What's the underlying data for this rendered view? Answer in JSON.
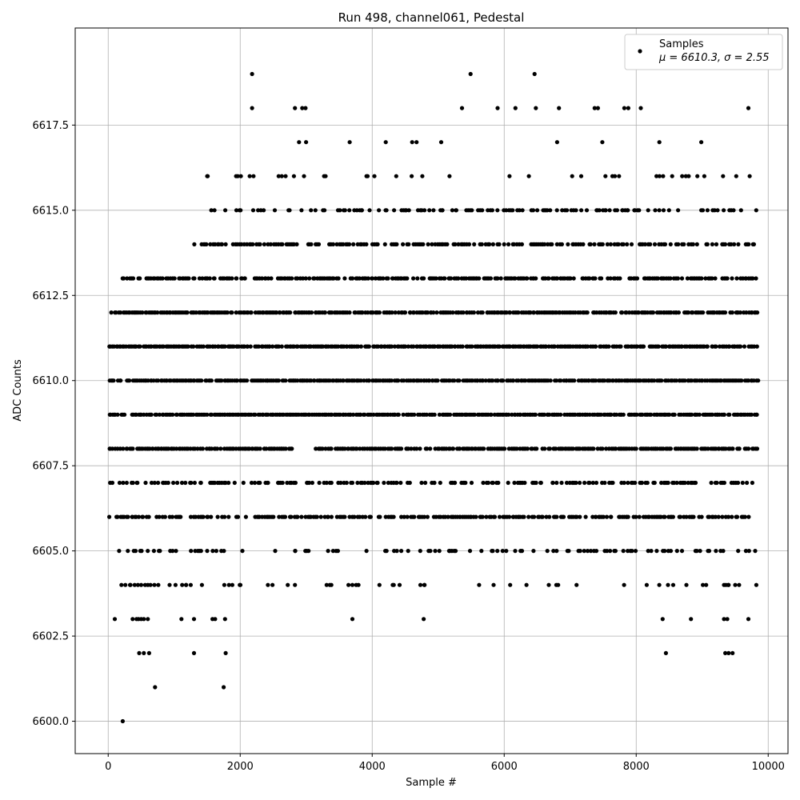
{
  "chart_data": {
    "type": "scatter",
    "title": "Run 498, channel061, Pedestal",
    "xlabel": "Sample #",
    "ylabel": "ADC Counts",
    "xlim": [
      -500,
      10300
    ],
    "ylim": [
      6599.05,
      6620.35
    ],
    "xticks": [
      0,
      2000,
      4000,
      6000,
      8000,
      10000
    ],
    "xtick_labels": [
      "0",
      "2000",
      "4000",
      "6000",
      "8000",
      "10000"
    ],
    "yticks": [
      6600.0,
      6602.5,
      6605.0,
      6607.5,
      6610.0,
      6612.5,
      6615.0,
      6617.5
    ],
    "ytick_labels": [
      "6600.0",
      "6602.5",
      "6605.0",
      "6607.5",
      "6610.0",
      "6612.5",
      "6615.0",
      "6617.5"
    ],
    "grid": true,
    "legend_position": "top-right",
    "marker_color": "#000000",
    "series": [
      {
        "name": "Samples",
        "legend_detail": "μ = 6610.3, σ = 2.55",
        "band_density": [
          {
            "y": 6608,
            "density": 0.85,
            "x_ranges": [
              [
                0,
                2840
              ],
              [
                3140,
                9850
              ]
            ]
          },
          {
            "y": 6609,
            "density": 0.9,
            "x_ranges": [
              [
                0,
                9850
              ]
            ]
          },
          {
            "y": 6610,
            "density": 0.9,
            "x_ranges": [
              [
                0,
                9850
              ]
            ]
          },
          {
            "y": 6611,
            "density": 0.9,
            "x_ranges": [
              [
                0,
                9850
              ]
            ]
          },
          {
            "y": 6612,
            "density": 0.85,
            "x_ranges": [
              [
                0,
                9850
              ]
            ]
          },
          {
            "y": 6613,
            "density": 0.7,
            "x_ranges": [
              [
                200,
                9850
              ]
            ]
          },
          {
            "y": 6614,
            "density": 0.55,
            "x_ranges": [
              [
                1300,
                9850
              ]
            ]
          },
          {
            "y": 6607,
            "density": 0.5,
            "x_ranges": [
              [
                0,
                9850
              ]
            ]
          },
          {
            "y": 6606,
            "density": 0.6,
            "x_ranges": [
              [
                0,
                9850
              ]
            ]
          },
          {
            "y": 6615,
            "density": 0.35,
            "x_ranges": [
              [
                1500,
                9850
              ]
            ]
          },
          {
            "y": 6605,
            "density": 0.25,
            "x_ranges": [
              [
                0,
                9850
              ]
            ]
          },
          {
            "y": 6616,
            "density": 0.12,
            "x_ranges": [
              [
                1400,
                9850
              ]
            ]
          },
          {
            "y": 6604,
            "density": 0.08,
            "x_ranges": [
              [
                0,
                9850
              ]
            ]
          },
          {
            "y": 6617,
            "density": 0.05,
            "x_ranges": [
              [
                2400,
                9850
              ]
            ]
          }
        ],
        "points": [
          [
            220,
            6600
          ],
          [
            710,
            6601
          ],
          [
            1750,
            6601
          ],
          [
            470,
            6602
          ],
          [
            540,
            6602
          ],
          [
            620,
            6602
          ],
          [
            1300,
            6602
          ],
          [
            1780,
            6602
          ],
          [
            8450,
            6602
          ],
          [
            9350,
            6602
          ],
          [
            9400,
            6602
          ],
          [
            9460,
            6602
          ],
          [
            100,
            6603
          ],
          [
            370,
            6603
          ],
          [
            430,
            6603
          ],
          [
            460,
            6603
          ],
          [
            500,
            6603
          ],
          [
            540,
            6603
          ],
          [
            600,
            6603
          ],
          [
            1110,
            6603
          ],
          [
            1300,
            6603
          ],
          [
            1580,
            6603
          ],
          [
            1620,
            6603
          ],
          [
            1770,
            6603
          ],
          [
            3700,
            6603
          ],
          [
            4780,
            6603
          ],
          [
            8400,
            6603
          ],
          [
            8830,
            6603
          ],
          [
            9330,
            6603
          ],
          [
            9380,
            6603
          ],
          [
            9700,
            6603
          ],
          [
            200,
            6604
          ],
          [
            260,
            6604
          ],
          [
            330,
            6604
          ],
          [
            400,
            6604
          ],
          [
            450,
            6604
          ],
          [
            500,
            6604
          ],
          [
            560,
            6604
          ],
          [
            600,
            6604
          ],
          [
            640,
            6604
          ],
          [
            700,
            6604
          ],
          [
            930,
            6604
          ],
          [
            1020,
            6604
          ],
          [
            1120,
            6604
          ],
          [
            1180,
            6604
          ],
          [
            1250,
            6604
          ],
          [
            1420,
            6604
          ],
          [
            1760,
            6604
          ],
          [
            1830,
            6604
          ],
          [
            1880,
            6604
          ],
          [
            2420,
            6604
          ],
          [
            2830,
            6604
          ],
          [
            3310,
            6604
          ],
          [
            3640,
            6604
          ],
          [
            3700,
            6604
          ],
          [
            4110,
            6604
          ],
          [
            4730,
            6604
          ],
          [
            4790,
            6604
          ],
          [
            5620,
            6604
          ],
          [
            5840,
            6604
          ],
          [
            6090,
            6604
          ],
          [
            6790,
            6604
          ],
          [
            8160,
            6604
          ],
          [
            8350,
            6604
          ],
          [
            8560,
            6604
          ],
          [
            9010,
            6604
          ],
          [
            9060,
            6604
          ],
          [
            9330,
            6604
          ],
          [
            9400,
            6604
          ],
          [
            9500,
            6604
          ],
          [
            9560,
            6604
          ],
          [
            9820,
            6604
          ],
          [
            2180,
            6619
          ],
          [
            5490,
            6619
          ],
          [
            6460,
            6619
          ],
          [
            2180,
            6618
          ],
          [
            2830,
            6618
          ],
          [
            2940,
            6618
          ],
          [
            2990,
            6618
          ],
          [
            5360,
            6618
          ],
          [
            5900,
            6618
          ],
          [
            6170,
            6618
          ],
          [
            6480,
            6618
          ],
          [
            6830,
            6618
          ],
          [
            7370,
            6618
          ],
          [
            7420,
            6618
          ],
          [
            7820,
            6618
          ],
          [
            7880,
            6618
          ],
          [
            8070,
            6618
          ],
          [
            9700,
            6618
          ]
        ]
      }
    ]
  }
}
